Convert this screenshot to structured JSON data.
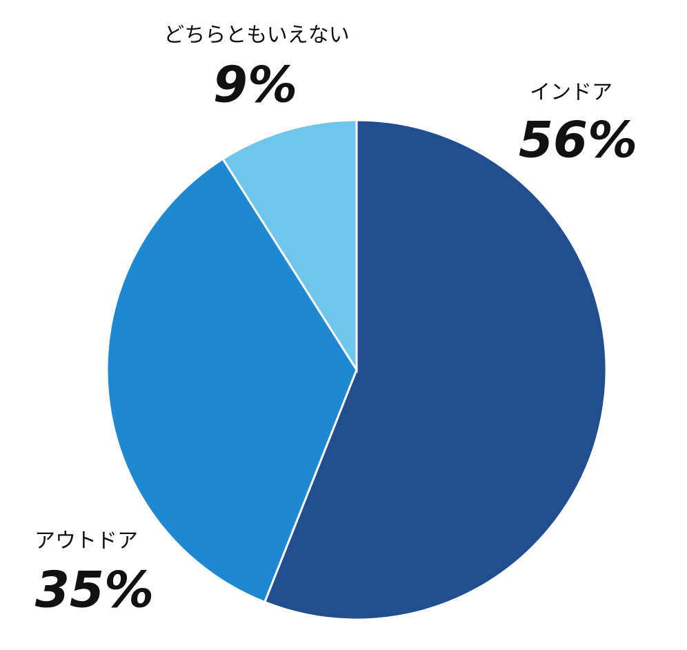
{
  "chart_data": {
    "type": "pie",
    "categories": [
      "インドア",
      "アウトドア",
      "どちらともいえない"
    ],
    "values": [
      56,
      35,
      9
    ],
    "value_labels": [
      "56%",
      "35%",
      "9%"
    ],
    "colors": [
      "#214e91",
      "#1e88d3",
      "#6fc6ec"
    ]
  }
}
